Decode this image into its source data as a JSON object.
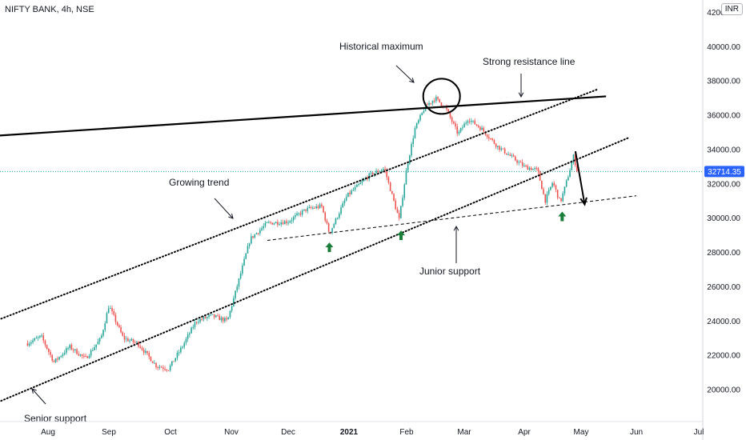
{
  "header": {
    "symbol_title": "NIFTY BANK, 4h, NSE",
    "currency": "INR"
  },
  "colors": {
    "up": "#26a69a",
    "down": "#ef5350",
    "axis_text": "#131722",
    "price_badge": "#2962ff",
    "arrow_green": "#1b7d3a",
    "line": "#000000"
  },
  "chart_data": {
    "type": "candlestick",
    "title": "NIFTY BANK, 4h, NSE",
    "xlabel": "",
    "ylabel": "",
    "x_ticks": [
      "Aug",
      "Sep",
      "Oct",
      "Nov",
      "Dec",
      "2021",
      "Feb",
      "Mar",
      "Apr",
      "May",
      "Jun",
      "Jul"
    ],
    "y_ticks": [
      "20000.00",
      "22000.00",
      "24000.00",
      "26000.00",
      "28000.00",
      "30000.00",
      "32000.00",
      "34000.00",
      "36000.00",
      "38000.00",
      "40000.00",
      "42000.00"
    ],
    "ylim": [
      18200,
      42500
    ],
    "current_price": "32714.35",
    "grid": false,
    "price_path": [
      [
        "2020-07-20",
        22700
      ],
      [
        "2020-07-28",
        23100
      ],
      [
        "2020-08-04",
        21600
      ],
      [
        "2020-08-12",
        22500
      ],
      [
        "2020-08-20",
        21800
      ],
      [
        "2020-08-28",
        23000
      ],
      [
        "2020-09-01",
        24900
      ],
      [
        "2020-09-08",
        23000
      ],
      [
        "2020-09-15",
        22700
      ],
      [
        "2020-09-24",
        21400
      ],
      [
        "2020-09-30",
        21200
      ],
      [
        "2020-10-07",
        22500
      ],
      [
        "2020-10-14",
        24000
      ],
      [
        "2020-10-22",
        24300
      ],
      [
        "2020-10-30",
        24000
      ],
      [
        "2020-11-06",
        26800
      ],
      [
        "2020-11-11",
        28800
      ],
      [
        "2020-11-20",
        29700
      ],
      [
        "2020-12-01",
        29800
      ],
      [
        "2020-12-10",
        30500
      ],
      [
        "2020-12-18",
        30700
      ],
      [
        "2020-12-22",
        29100
      ],
      [
        "2020-12-31",
        31300
      ],
      [
        "2021-01-12",
        32500
      ],
      [
        "2021-01-20",
        32900
      ],
      [
        "2021-01-28",
        29900
      ],
      [
        "2021-02-01",
        32900
      ],
      [
        "2021-02-05",
        35200
      ],
      [
        "2021-02-10",
        36500
      ],
      [
        "2021-02-15",
        37000
      ],
      [
        "2021-02-20",
        36400
      ],
      [
        "2021-02-26",
        34900
      ],
      [
        "2021-03-03",
        35800
      ],
      [
        "2021-03-10",
        35200
      ],
      [
        "2021-03-18",
        34200
      ],
      [
        "2021-03-25",
        33600
      ],
      [
        "2021-04-01",
        33000
      ],
      [
        "2021-04-08",
        32800
      ],
      [
        "2021-04-12",
        31000
      ],
      [
        "2021-04-16",
        32100
      ],
      [
        "2021-04-20",
        30900
      ],
      [
        "2021-04-23",
        32000
      ],
      [
        "2021-04-27",
        33600
      ],
      [
        "2021-04-29",
        32714
      ]
    ],
    "trend_lines": [
      {
        "style": "solid",
        "from": [
          "2020-07-01",
          34800
        ],
        "to": [
          "2021-05-15",
          37100
        ]
      },
      {
        "style": "dotted",
        "from": [
          "2020-07-01",
          24000
        ],
        "to": [
          "2021-05-10",
          37500
        ]
      },
      {
        "style": "dotted",
        "from": [
          "2020-07-01",
          19200
        ],
        "to": [
          "2021-05-28",
          34700
        ]
      },
      {
        "style": "dashed",
        "from": [
          "2020-11-20",
          28700
        ],
        "to": [
          "2021-06-01",
          31300
        ]
      }
    ],
    "annotations": {
      "historical_maximum": "Historical maximum",
      "strong_resistance": "Strong resistance line",
      "growing_trend": "Growing trend",
      "junior_support": "Junior support",
      "senior_support": "Senior support"
    },
    "marked_points": [
      {
        "type": "circle",
        "date": "2021-02-18",
        "value": 37100
      },
      {
        "type": "up-arrow",
        "date": "2020-12-22",
        "value": 28300
      },
      {
        "type": "up-arrow",
        "date": "2021-01-29",
        "value": 29000
      },
      {
        "type": "up-arrow",
        "date": "2021-04-21",
        "value": 30100
      },
      {
        "type": "down-arrow",
        "from": [
          "2021-04-28",
          33900
        ],
        "to": [
          "2021-05-03",
          30800
        ]
      }
    ]
  }
}
